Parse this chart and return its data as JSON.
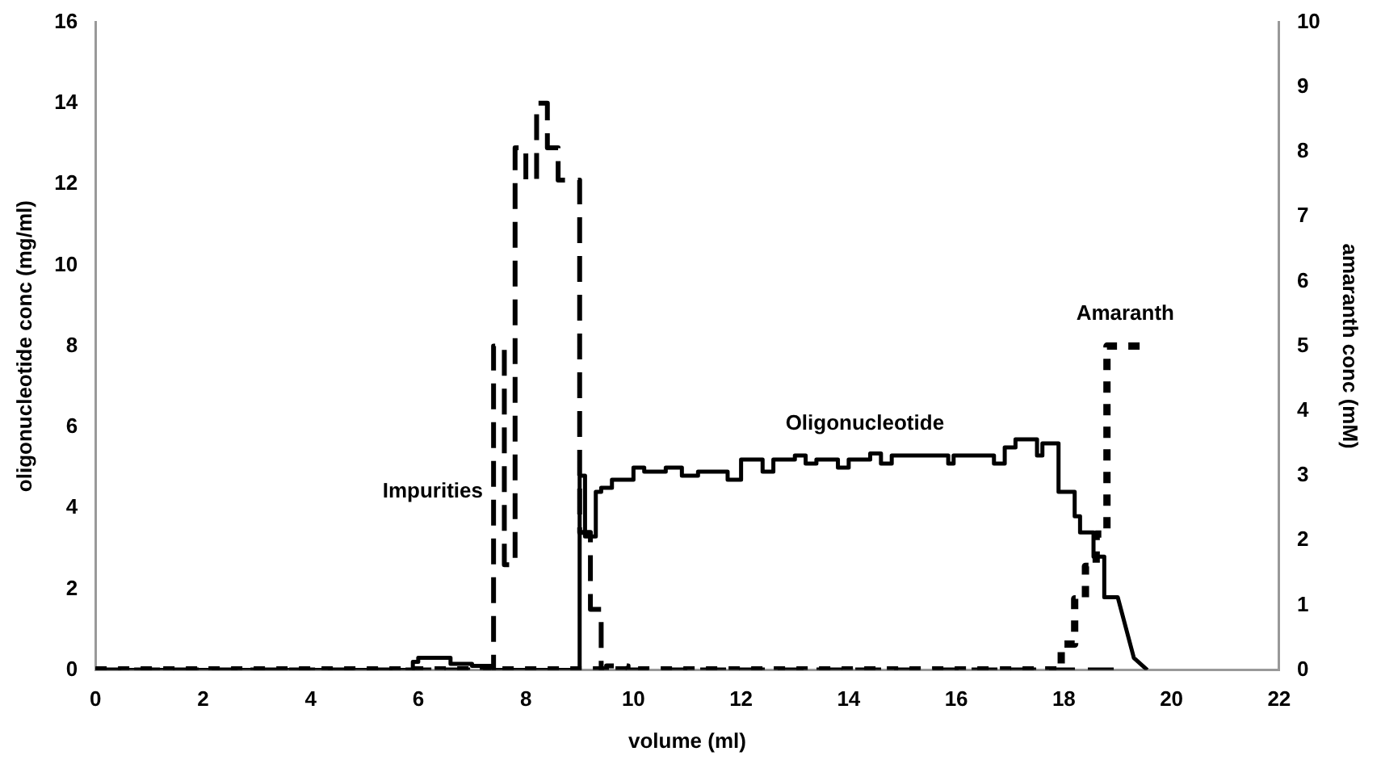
{
  "chart_data": {
    "type": "line",
    "xlabel": "volume (ml)",
    "ylabel": "oligonucleotide conc (mg/ml)",
    "y2label": "amaranth conc (mM)",
    "xlim": [
      0,
      22
    ],
    "xticks": [
      0,
      2,
      4,
      6,
      8,
      10,
      12,
      14,
      16,
      18,
      20,
      22
    ],
    "ylim": [
      0,
      16
    ],
    "yticks": [
      0,
      2,
      4,
      6,
      8,
      10,
      12,
      14,
      16
    ],
    "y2lim": [
      0,
      10
    ],
    "y2ticks": [
      0,
      1,
      2,
      3,
      4,
      5,
      6,
      7,
      8,
      9,
      10
    ],
    "grid": false,
    "legend": false,
    "marker": "none",
    "series": [
      {
        "name": "Impurities",
        "color": "#000000",
        "line_style": "dashed",
        "x": [
          0,
          7.4,
          7.4,
          7.6,
          7.6,
          7.8,
          7.8,
          8.0,
          8.0,
          8.2,
          8.2,
          8.4,
          8.4,
          8.6,
          8.6,
          9.0,
          9.0,
          9.2,
          9.2,
          9.4,
          9.4,
          9.5,
          9.5,
          9.9,
          9.9,
          19.0
        ],
        "values": [
          0,
          0,
          8.0,
          8.0,
          2.6,
          2.6,
          12.9,
          12.9,
          12.1,
          12.1,
          14.0,
          14.0,
          12.9,
          12.9,
          12.1,
          12.1,
          3.4,
          3.4,
          1.5,
          1.5,
          0,
          0,
          0.1,
          0.1,
          0,
          0
        ]
      },
      {
        "name": "Oligonucleotide",
        "color": "#000000",
        "line_style": "solid",
        "x": [
          0,
          5.9,
          5.9,
          6.0,
          6.0,
          6.6,
          6.6,
          7.0,
          7.0,
          7.4,
          7.4,
          9.0,
          9.0,
          9.1,
          9.1,
          9.3,
          9.3,
          9.4,
          9.4,
          9.6,
          9.6,
          10.0,
          10.0,
          10.2,
          10.2,
          10.6,
          10.6,
          10.9,
          10.9,
          11.2,
          11.2,
          11.75,
          11.75,
          12.0,
          12.0,
          12.4,
          12.4,
          12.6,
          12.6,
          13.0,
          13.0,
          13.2,
          13.2,
          13.4,
          13.4,
          13.8,
          13.8,
          14.0,
          14.0,
          14.4,
          14.4,
          14.6,
          14.6,
          14.8,
          14.8,
          15.85,
          15.85,
          15.95,
          15.95,
          16.7,
          16.7,
          16.9,
          16.9,
          17.1,
          17.1,
          17.5,
          17.5,
          17.6,
          17.6,
          17.9,
          17.9,
          18.2,
          18.2,
          18.3,
          18.3,
          18.55,
          18.55,
          18.75,
          18.75,
          19.0,
          19.3,
          19.55
        ],
        "values": [
          0,
          0,
          0.2,
          0.2,
          0.3,
          0.3,
          0.15,
          0.15,
          0.1,
          0.1,
          0,
          0,
          4.8,
          4.8,
          3.3,
          3.3,
          4.4,
          4.4,
          4.5,
          4.5,
          4.7,
          4.7,
          5.0,
          5.0,
          4.9,
          4.9,
          5.0,
          5.0,
          4.8,
          4.8,
          4.9,
          4.9,
          4.7,
          4.7,
          5.2,
          5.2,
          4.9,
          4.9,
          5.2,
          5.2,
          5.3,
          5.3,
          5.1,
          5.1,
          5.2,
          5.2,
          5.0,
          5.0,
          5.2,
          5.2,
          5.35,
          5.35,
          5.1,
          5.1,
          5.3,
          5.3,
          5.1,
          5.1,
          5.3,
          5.3,
          5.1,
          5.1,
          5.5,
          5.5,
          5.7,
          5.7,
          5.3,
          5.3,
          5.6,
          5.6,
          4.4,
          4.4,
          3.8,
          3.8,
          3.4,
          3.4,
          2.8,
          2.8,
          1.8,
          1.8,
          0.3,
          0
        ]
      },
      {
        "name": "Amaranth",
        "color": "#000000",
        "line_style": "dotted",
        "axis": "y2",
        "x": [
          0,
          17.95,
          17.95,
          18.2,
          18.2,
          18.4,
          18.4,
          18.6,
          18.6,
          18.8,
          18.8,
          19.45
        ],
        "values": [
          0,
          0,
          0.4,
          0.4,
          1.1,
          1.1,
          1.6,
          1.6,
          2.1,
          2.1,
          5.0,
          5.0
        ]
      }
    ]
  }
}
